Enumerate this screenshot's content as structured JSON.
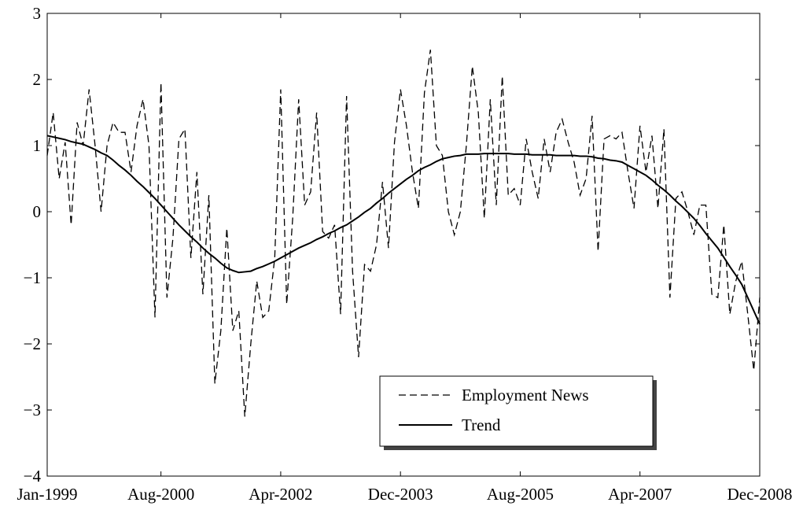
{
  "chart_data": {
    "type": "line",
    "x": [
      "Jan-1999",
      "Feb-1999",
      "Mar-1999",
      "Apr-1999",
      "May-1999",
      "Jun-1999",
      "Jul-1999",
      "Aug-1999",
      "Sep-1999",
      "Oct-1999",
      "Nov-1999",
      "Dec-1999",
      "Jan-2000",
      "Feb-2000",
      "Mar-2000",
      "Apr-2000",
      "May-2000",
      "Jun-2000",
      "Jul-2000",
      "Aug-2000",
      "Sep-2000",
      "Oct-2000",
      "Nov-2000",
      "Dec-2000",
      "Jan-2001",
      "Feb-2001",
      "Mar-2001",
      "Apr-2001",
      "May-2001",
      "Jun-2001",
      "Jul-2001",
      "Aug-2001",
      "Sep-2001",
      "Oct-2001",
      "Nov-2001",
      "Dec-2001",
      "Jan-2002",
      "Feb-2002",
      "Mar-2002",
      "Apr-2002",
      "May-2002",
      "Jun-2002",
      "Jul-2002",
      "Aug-2002",
      "Sep-2002",
      "Oct-2002",
      "Nov-2002",
      "Dec-2002",
      "Jan-2003",
      "Feb-2003",
      "Mar-2003",
      "Apr-2003",
      "May-2003",
      "Jun-2003",
      "Jul-2003",
      "Aug-2003",
      "Sep-2003",
      "Oct-2003",
      "Nov-2003",
      "Dec-2003",
      "Jan-2004",
      "Feb-2004",
      "Mar-2004",
      "Apr-2004",
      "May-2004",
      "Jun-2004",
      "Jul-2004",
      "Aug-2004",
      "Sep-2004",
      "Oct-2004",
      "Nov-2004",
      "Dec-2004",
      "Jan-2005",
      "Feb-2005",
      "Mar-2005",
      "Apr-2005",
      "May-2005",
      "Jun-2005",
      "Jul-2005",
      "Aug-2005",
      "Sep-2005",
      "Oct-2005",
      "Nov-2005",
      "Dec-2005",
      "Jan-2006",
      "Feb-2006",
      "Mar-2006",
      "Apr-2006",
      "May-2006",
      "Jun-2006",
      "Jul-2006",
      "Aug-2006",
      "Sep-2006",
      "Oct-2006",
      "Nov-2006",
      "Dec-2006",
      "Jan-2007",
      "Feb-2007",
      "Mar-2007",
      "Apr-2007",
      "May-2007",
      "Jun-2007",
      "Jul-2007",
      "Aug-2007",
      "Sep-2007",
      "Oct-2007",
      "Nov-2007",
      "Dec-2007",
      "Jan-2008",
      "Feb-2008",
      "Mar-2008",
      "Apr-2008",
      "May-2008",
      "Jun-2008",
      "Jul-2008",
      "Aug-2008",
      "Sep-2008",
      "Oct-2008",
      "Nov-2008",
      "Dec-2008"
    ],
    "xticks": [
      "Jan-1999",
      "Aug-2000",
      "Apr-2002",
      "Dec-2003",
      "Aug-2005",
      "Apr-2007",
      "Dec-2008"
    ],
    "ylim": [
      -4,
      3
    ],
    "yticks": [
      {
        "value": -4,
        "label": "−4"
      },
      {
        "value": -3,
        "label": "−3"
      },
      {
        "value": -2,
        "label": "−2"
      },
      {
        "value": -1,
        "label": "−1"
      },
      0,
      1,
      2,
      3
    ],
    "grid": false,
    "legend": "lower right",
    "series": [
      {
        "name": "Employment News",
        "color": "#000000",
        "dashed": true,
        "values": [
          0.85,
          1.5,
          0.5,
          1.05,
          -0.2,
          1.35,
          1.0,
          1.85,
          1.0,
          0.0,
          1.0,
          1.35,
          1.2,
          1.2,
          0.6,
          1.3,
          1.7,
          1.0,
          -1.6,
          1.95,
          -1.3,
          -0.4,
          1.1,
          1.25,
          -0.7,
          0.6,
          -1.25,
          0.25,
          -2.6,
          -1.8,
          -0.25,
          -1.8,
          -1.5,
          -3.1,
          -2.0,
          -1.05,
          -1.6,
          -1.5,
          -0.7,
          1.85,
          -1.4,
          -0.1,
          1.7,
          0.1,
          0.3,
          1.5,
          -0.3,
          -0.4,
          -0.2,
          -1.55,
          1.75,
          -0.9,
          -2.2,
          -0.8,
          -0.9,
          -0.5,
          0.45,
          -0.55,
          1.05,
          1.85,
          1.3,
          0.6,
          0.05,
          1.8,
          2.45,
          1.0,
          0.85,
          0.0,
          -0.35,
          0.0,
          1.0,
          2.2,
          1.5,
          -0.1,
          1.7,
          0.1,
          2.05,
          0.25,
          0.35,
          0.1,
          1.1,
          0.6,
          0.2,
          1.1,
          0.6,
          1.2,
          1.4,
          1.05,
          0.75,
          0.25,
          0.5,
          1.45,
          -0.6,
          1.1,
          1.15,
          1.1,
          1.2,
          0.6,
          0.05,
          1.3,
          0.6,
          1.15,
          0.05,
          1.25,
          -1.3,
          0.2,
          0.3,
          0.0,
          -0.35,
          0.1,
          0.1,
          -1.25,
          -1.3,
          -0.2,
          -1.55,
          -1.05,
          -0.75,
          -1.55,
          -2.4,
          -1.3
        ]
      },
      {
        "name": "Trend",
        "color": "#000000",
        "dashed": false,
        "values": [
          1.15,
          1.13,
          1.11,
          1.09,
          1.06,
          1.04,
          1.02,
          0.98,
          0.94,
          0.89,
          0.85,
          0.78,
          0.7,
          0.63,
          0.55,
          0.46,
          0.38,
          0.29,
          0.2,
          0.1,
          0.0,
          -0.1,
          -0.2,
          -0.29,
          -0.38,
          -0.46,
          -0.55,
          -0.63,
          -0.7,
          -0.78,
          -0.85,
          -0.89,
          -0.92,
          -0.91,
          -0.9,
          -0.86,
          -0.83,
          -0.79,
          -0.75,
          -0.7,
          -0.65,
          -0.6,
          -0.55,
          -0.51,
          -0.47,
          -0.42,
          -0.38,
          -0.33,
          -0.29,
          -0.24,
          -0.2,
          -0.14,
          -0.08,
          -0.01,
          0.05,
          0.13,
          0.2,
          0.28,
          0.35,
          0.42,
          0.49,
          0.55,
          0.62,
          0.67,
          0.71,
          0.76,
          0.8,
          0.82,
          0.84,
          0.85,
          0.87,
          0.87,
          0.87,
          0.88,
          0.88,
          0.88,
          0.88,
          0.88,
          0.87,
          0.87,
          0.87,
          0.86,
          0.86,
          0.86,
          0.86,
          0.85,
          0.85,
          0.85,
          0.85,
          0.84,
          0.84,
          0.83,
          0.81,
          0.8,
          0.78,
          0.77,
          0.75,
          0.7,
          0.65,
          0.6,
          0.55,
          0.48,
          0.4,
          0.33,
          0.25,
          0.16,
          0.08,
          -0.01,
          -0.1,
          -0.21,
          -0.33,
          -0.44,
          -0.55,
          -0.69,
          -0.83,
          -0.96,
          -1.1,
          -1.3,
          -1.5,
          -1.7
        ]
      }
    ]
  }
}
